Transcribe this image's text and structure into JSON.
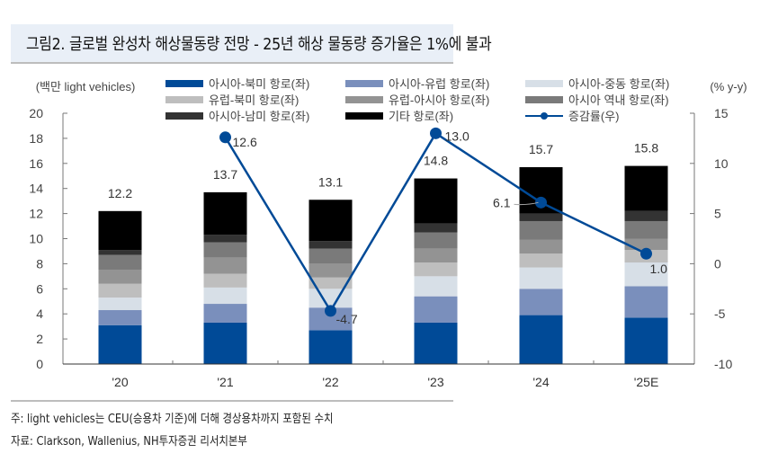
{
  "title": "그림2. 글로벌 완성차 해상물동량 전망 - 25년 해상 물동량 증가율은 1%에 불과",
  "notes": {
    "note": "주: light vehicles는 CEU(승용차 기준)에 더해 경상용차까지 포함된 수치",
    "source": "자료: Clarkson, Wallenius, NH투자증권 리서치본부"
  },
  "chart_data": {
    "type": "bar",
    "stacked": true,
    "title": "글로벌 완성차 해상물동량 전망",
    "categories": [
      "'20",
      "'21",
      "'22",
      "'23",
      "'24",
      "'25E"
    ],
    "ylabel": "(백만 light vehicles)",
    "ylim": [
      0,
      20
    ],
    "yticks": [
      "0",
      "2",
      "4",
      "6",
      "8",
      "10",
      "12",
      "14",
      "16",
      "18",
      "20"
    ],
    "y2label": "(% y-y)",
    "y2lim": [
      -10,
      15
    ],
    "y2ticks": [
      "-10",
      "-5",
      "0",
      "5",
      "10",
      "15"
    ],
    "grid": false,
    "legend_position": "top",
    "series": [
      {
        "name": "아시아-북미 항로(좌)",
        "color": "#004a97",
        "values": [
          3.1,
          3.3,
          2.7,
          3.3,
          3.9,
          3.7
        ]
      },
      {
        "name": "아시아-유럽 항로(좌)",
        "color": "#7a8fbc",
        "values": [
          1.2,
          1.5,
          1.8,
          2.1,
          2.1,
          2.5
        ]
      },
      {
        "name": "아시아-중동 항로(좌)",
        "color": "#d7dfe7",
        "values": [
          1.0,
          1.3,
          1.5,
          1.6,
          1.7,
          1.9
        ]
      },
      {
        "name": "유럽-북미 항로(좌)",
        "color": "#bebebe",
        "values": [
          1.1,
          1.1,
          0.9,
          1.1,
          1.1,
          1.0
        ]
      },
      {
        "name": "유럽-아시아 항로(좌)",
        "color": "#939393",
        "values": [
          1.1,
          1.3,
          1.1,
          1.1,
          1.1,
          0.9
        ]
      },
      {
        "name": "아시아 역내 항로(좌)",
        "color": "#7a7a7a",
        "values": [
          1.2,
          1.2,
          1.2,
          1.3,
          1.5,
          1.4
        ]
      },
      {
        "name": "아시아-남미 항로(좌)",
        "color": "#333333",
        "values": [
          0.4,
          0.6,
          0.6,
          0.7,
          0.6,
          0.8
        ]
      },
      {
        "name": "기타 항로(좌)",
        "color": "#000000",
        "values": [
          3.1,
          3.4,
          3.3,
          3.6,
          3.7,
          3.6
        ]
      }
    ],
    "totals": [
      12.2,
      13.7,
      13.1,
      14.8,
      15.7,
      15.8
    ],
    "total_labels": [
      "12.2",
      "13.7",
      "13.1",
      "14.8",
      "15.7",
      "15.8"
    ],
    "line": {
      "name": "증감률(우)",
      "color": "#004a97",
      "axis": "right",
      "values": [
        null,
        12.6,
        -4.7,
        13.0,
        6.1,
        1.0
      ],
      "labels": [
        "",
        "12.6",
        "-4.7",
        "13.0",
        "6.1",
        "1.0"
      ]
    },
    "legend": [
      "아시아-북미 항로(좌)",
      "아시아-유럽 항로(좌)",
      "아시아-중동 항로(좌)",
      "유럽-북미 항로(좌)",
      "유럽-아시아 항로(좌)",
      "아시아 역내 항로(좌)",
      "아시아-남미 항로(좌)",
      "기타 항로(좌)",
      "증감률(우)"
    ]
  }
}
